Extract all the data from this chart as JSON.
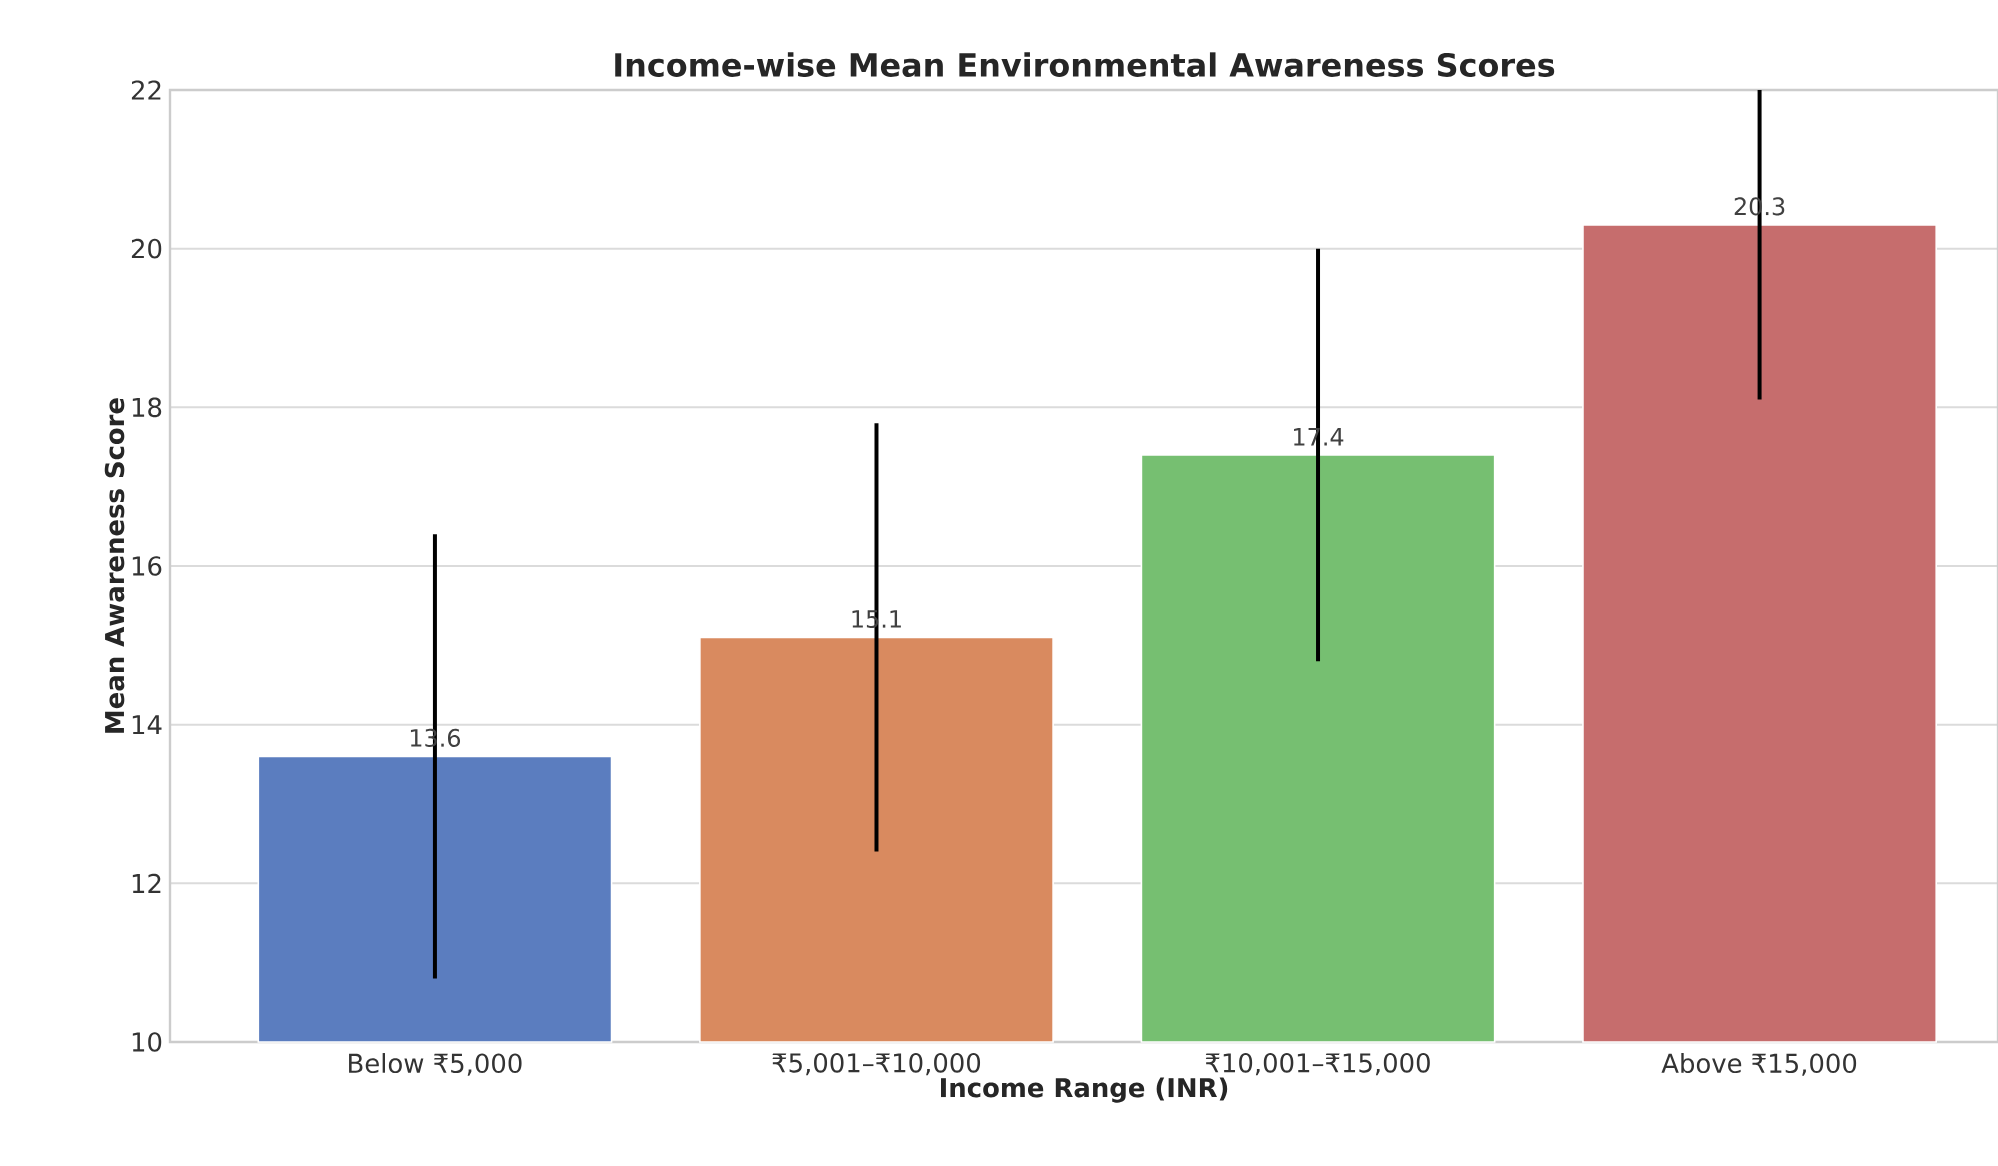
{
  "chart_data": {
    "type": "bar",
    "title": "Income-wise Mean Environmental Awareness Scores",
    "xlabel": "Income Range (INR)",
    "ylabel": "Mean Awareness Score",
    "categories": [
      "Below ₹5,000",
      "₹5,001–₹10,000",
      "₹10,001–₹15,000",
      "Above ₹15,000"
    ],
    "values": [
      13.6,
      15.1,
      17.4,
      20.3
    ],
    "colors": [
      "#5b7dbf",
      "#d98a5f",
      "#76bf71",
      "#c66d6d"
    ],
    "errors": [
      [
        10.8,
        16.4
      ],
      [
        12.4,
        17.8
      ],
      [
        14.8,
        20.0
      ],
      [
        18.1,
        22
      ]
    ],
    "ylim": [
      10,
      22
    ],
    "yticks": [
      10,
      12,
      14,
      16,
      18,
      20,
      22
    ],
    "grid": "y",
    "data_labels": true
  }
}
